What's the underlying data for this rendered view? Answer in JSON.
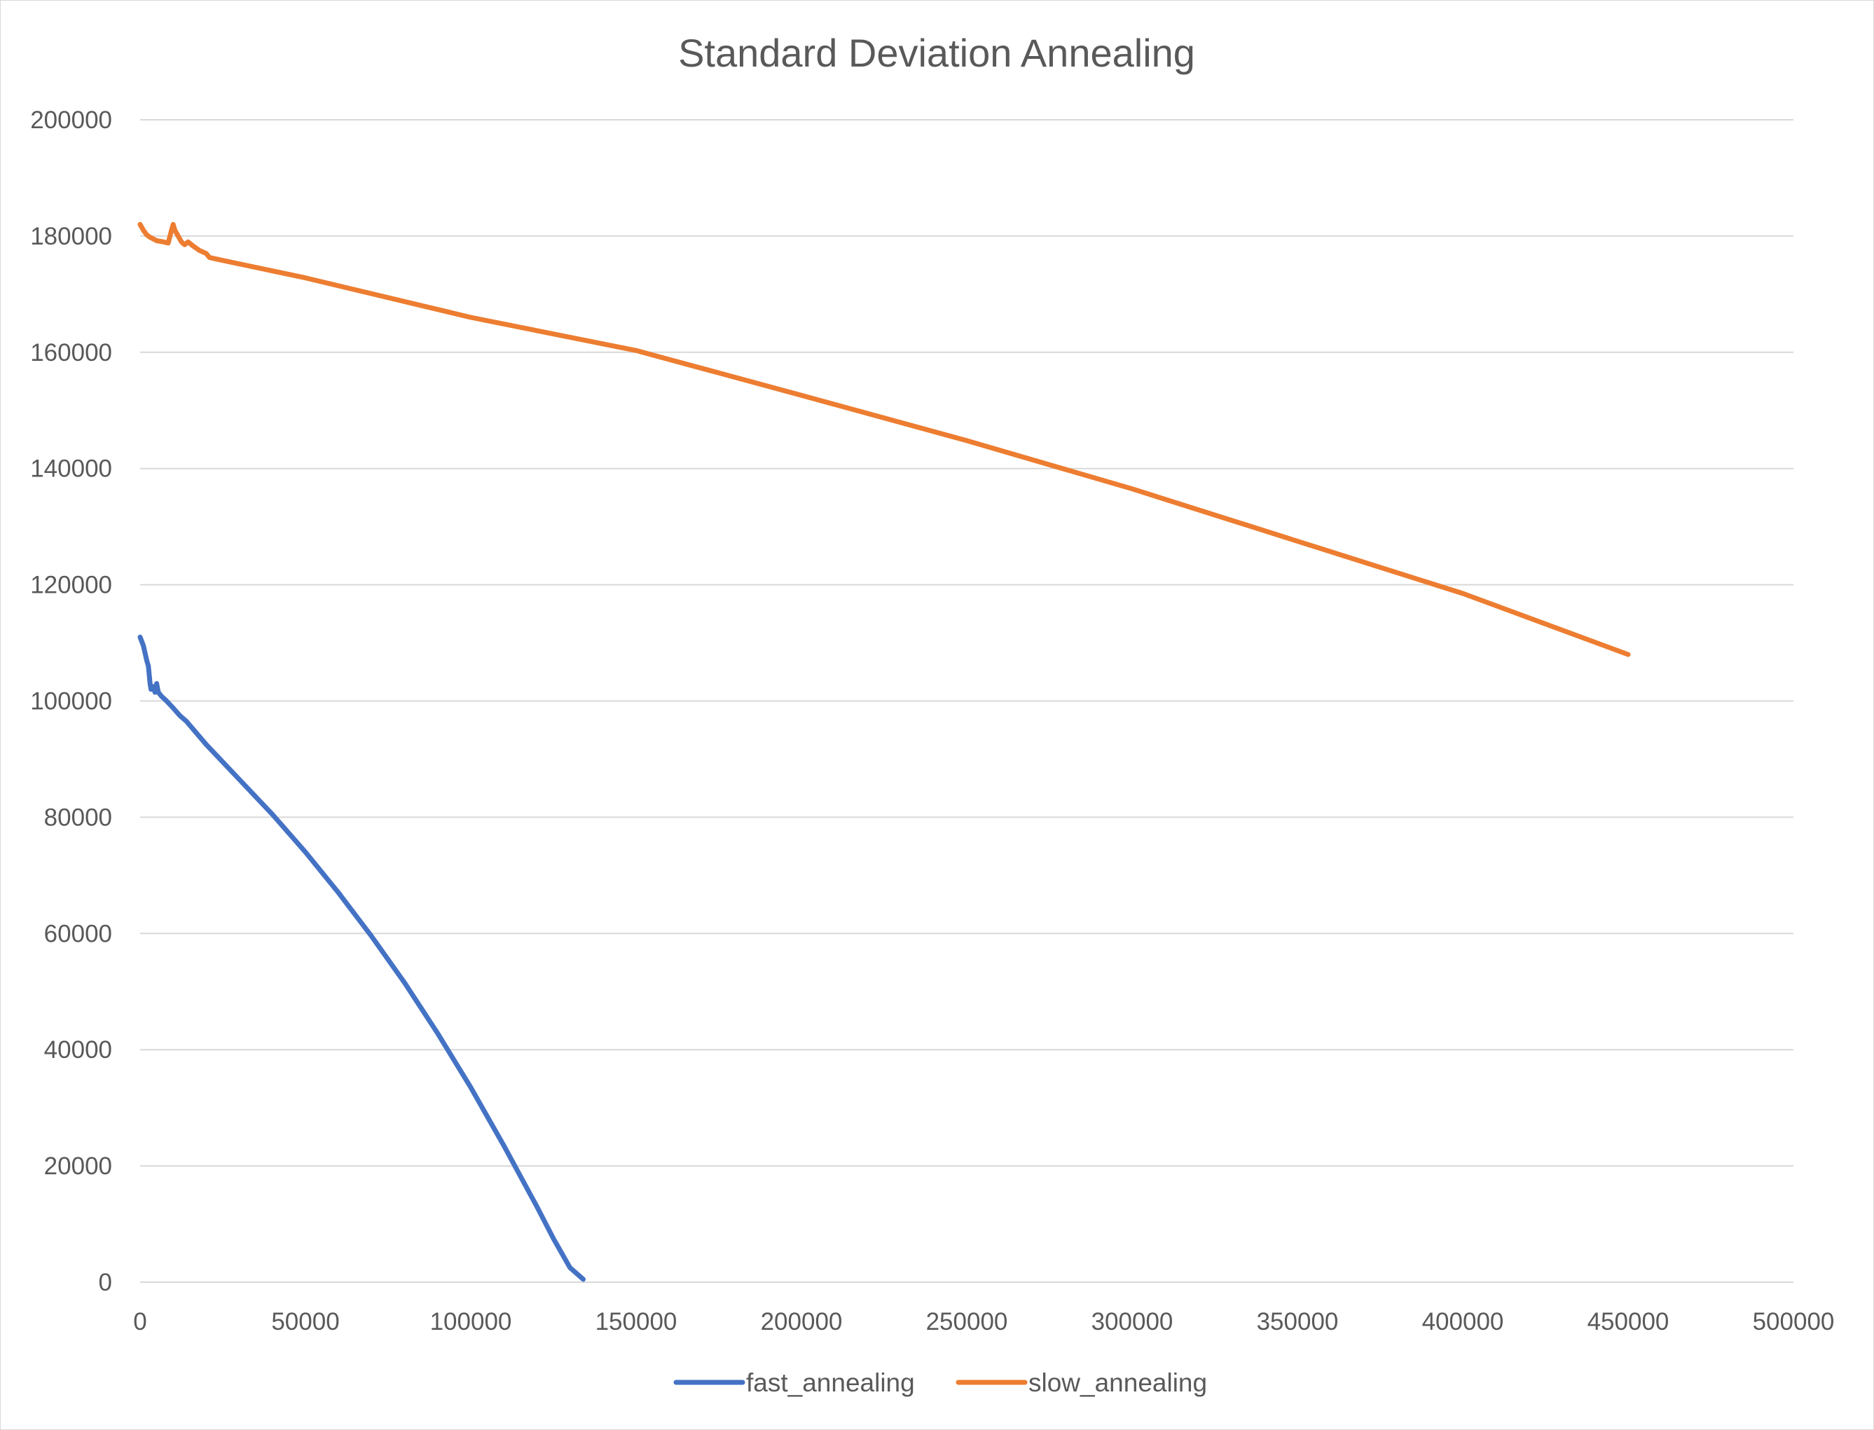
{
  "chart_data": {
    "type": "line",
    "title": "Standard Deviation Annealing",
    "xlabel": "",
    "ylabel": "",
    "xlim": [
      0,
      500000
    ],
    "ylim": [
      0,
      200000
    ],
    "x_ticks": [
      0,
      50000,
      100000,
      150000,
      200000,
      250000,
      300000,
      350000,
      400000,
      450000,
      500000
    ],
    "y_ticks": [
      0,
      20000,
      40000,
      60000,
      80000,
      100000,
      120000,
      140000,
      160000,
      180000,
      200000
    ],
    "x_tick_labels": [
      "0",
      "50000",
      "100000",
      "150000",
      "200000",
      "250000",
      "300000",
      "350000",
      "400000",
      "450000",
      "500000"
    ],
    "y_tick_labels": [
      "0",
      "20000",
      "40000",
      "60000",
      "80000",
      "100000",
      "120000",
      "140000",
      "160000",
      "180000",
      "200000"
    ],
    "grid": "horizontal",
    "legend_position": "bottom",
    "series": [
      {
        "name": "fast_annealing",
        "color": "#4472c4",
        "points": [
          [
            0,
            111000
          ],
          [
            1000,
            109500
          ],
          [
            2000,
            107000
          ],
          [
            2500,
            106000
          ],
          [
            3000,
            103000
          ],
          [
            3300,
            102000
          ],
          [
            4000,
            102500
          ],
          [
            4500,
            101500
          ],
          [
            5000,
            103000
          ],
          [
            5500,
            101500
          ],
          [
            6500,
            100800
          ],
          [
            8000,
            100000
          ],
          [
            10000,
            98800
          ],
          [
            12000,
            97500
          ],
          [
            14000,
            96500
          ],
          [
            20000,
            92500
          ],
          [
            30000,
            86500
          ],
          [
            40000,
            80500
          ],
          [
            50000,
            74000
          ],
          [
            60000,
            67000
          ],
          [
            70000,
            59500
          ],
          [
            80000,
            51500
          ],
          [
            90000,
            42800
          ],
          [
            100000,
            33500
          ],
          [
            110000,
            23500
          ],
          [
            120000,
            13000
          ],
          [
            125000,
            7500
          ],
          [
            130000,
            2500
          ],
          [
            134000,
            500
          ]
        ]
      },
      {
        "name": "slow_annealing",
        "color": "#ed7d31",
        "points": [
          [
            0,
            182000
          ],
          [
            1000,
            181000
          ],
          [
            2000,
            180200
          ],
          [
            3000,
            179800
          ],
          [
            5000,
            179200
          ],
          [
            7000,
            179000
          ],
          [
            8500,
            178800
          ],
          [
            9500,
            181000
          ],
          [
            10000,
            182000
          ],
          [
            10500,
            181000
          ],
          [
            11500,
            180000
          ],
          [
            12500,
            179000
          ],
          [
            13500,
            178500
          ],
          [
            14500,
            179000
          ],
          [
            16000,
            178300
          ],
          [
            18000,
            177500
          ],
          [
            20000,
            177000
          ],
          [
            21000,
            176300
          ],
          [
            25000,
            175800
          ],
          [
            50000,
            172800
          ],
          [
            100000,
            166000
          ],
          [
            150000,
            160300
          ],
          [
            200000,
            152600
          ],
          [
            250000,
            144800
          ],
          [
            300000,
            136500
          ],
          [
            350000,
            127500
          ],
          [
            400000,
            118500
          ],
          [
            450000,
            108000
          ]
        ]
      }
    ]
  }
}
